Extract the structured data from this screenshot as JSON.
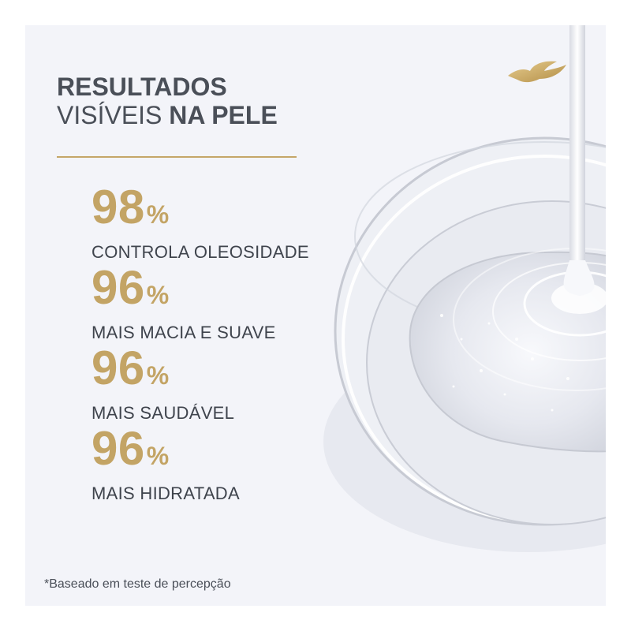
{
  "headline": {
    "line1": "RESULTADOS",
    "line2_light": "VISÍVEIS",
    "line2_bold": "NA PELE"
  },
  "stats": [
    {
      "value": "98",
      "unit": "%",
      "label": "CONTROLA OLEOSIDADE"
    },
    {
      "value": "96",
      "unit": "%",
      "label": "MAIS MACIA E SUAVE"
    },
    {
      "value": "96",
      "unit": "%",
      "label": "MAIS SAUDÁVEL"
    },
    {
      "value": "96",
      "unit": "%",
      "label": "MAIS HIDRATADA"
    }
  ],
  "footnote": "*Baseado em teste de percepção",
  "colors": {
    "gold": "#c3a465",
    "text": "#4a4f58",
    "background": "#f3f4f9"
  },
  "icons": {
    "logo": "dove-bird-logo-icon"
  }
}
